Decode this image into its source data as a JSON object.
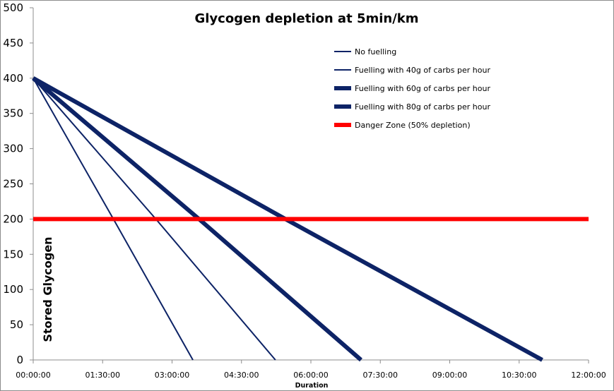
{
  "chart_data": {
    "type": "line",
    "title": "Glycogen depletion at 5min/km",
    "xlabel": "Duration",
    "ylabel": "Stored Glycogen",
    "xlim": [
      0,
      720
    ],
    "ylim": [
      0,
      500
    ],
    "x_unit": "minutes",
    "x_ticks": [
      {
        "value": 0,
        "label": "00:00:00"
      },
      {
        "value": 90,
        "label": "01:30:00"
      },
      {
        "value": 180,
        "label": "03:00:00"
      },
      {
        "value": 270,
        "label": "04:30:00"
      },
      {
        "value": 360,
        "label": "06:00:00"
      },
      {
        "value": 450,
        "label": "07:30:00"
      },
      {
        "value": 540,
        "label": "09:00:00"
      },
      {
        "value": 630,
        "label": "10:30:00"
      },
      {
        "value": 720,
        "label": "12:00:00"
      }
    ],
    "y_ticks": [
      0,
      50,
      100,
      150,
      200,
      250,
      300,
      350,
      400,
      450,
      500
    ],
    "grid": false,
    "legend_position": "top-right",
    "series": [
      {
        "name": "No fuelling",
        "color": "#0d2366",
        "weight": "thin",
        "points": [
          [
            0,
            400
          ],
          [
            104,
            200
          ],
          [
            207,
            0
          ]
        ]
      },
      {
        "name": "Fuelling with 40g of carbs per hour",
        "color": "#0d2366",
        "weight": "thin",
        "points": [
          [
            0,
            400
          ],
          [
            159,
            200
          ],
          [
            314,
            0
          ]
        ]
      },
      {
        "name": "Fuelling with 60g of carbs per hour",
        "color": "#0d2366",
        "weight": "bold",
        "points": [
          [
            0,
            400
          ],
          [
            215,
            200
          ],
          [
            425,
            0
          ]
        ]
      },
      {
        "name": "Fuelling with 80g of carbs per hour",
        "color": "#0d2366",
        "weight": "bold",
        "points": [
          [
            0,
            400
          ],
          [
            327,
            200
          ],
          [
            660,
            0
          ]
        ]
      },
      {
        "name": "Danger Zone (50% depletion)",
        "color": "#ff0000",
        "weight": "bold",
        "points": [
          [
            0,
            200
          ],
          [
            720,
            200
          ]
        ]
      }
    ]
  }
}
